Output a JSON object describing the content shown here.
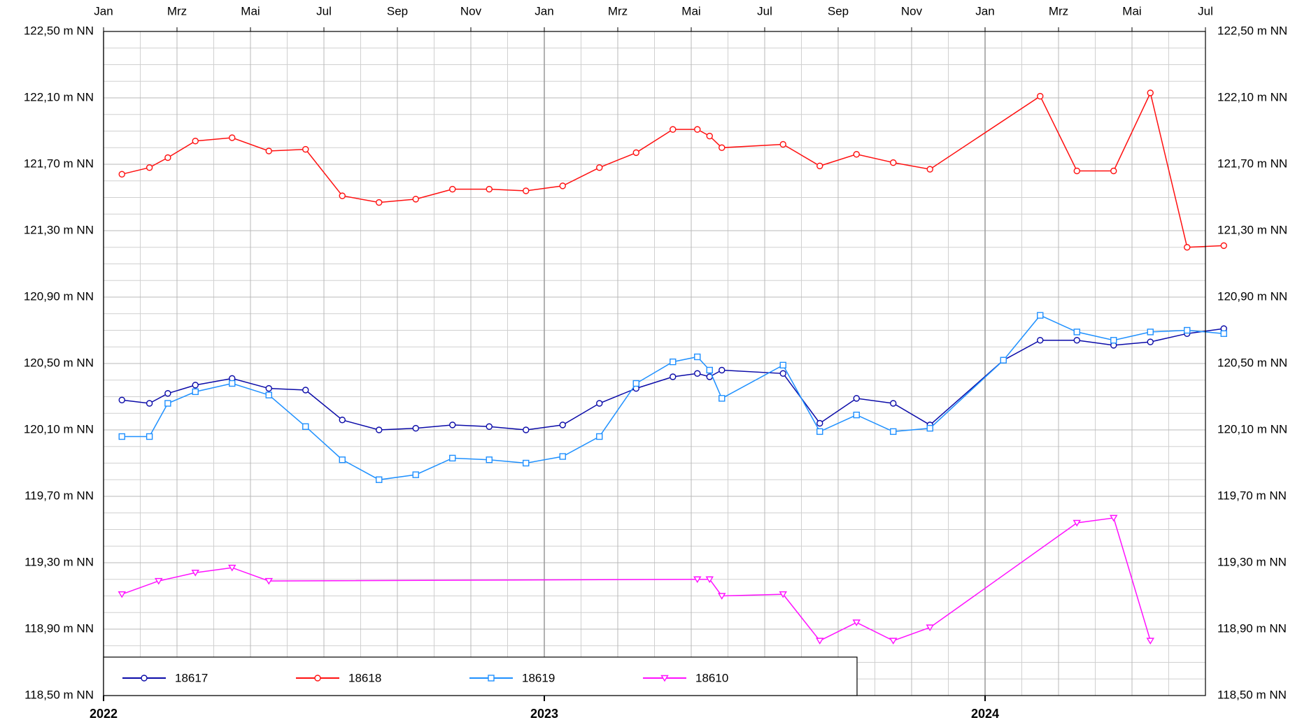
{
  "chart_data": {
    "type": "line",
    "xlim": [
      "2022-01",
      "2024-07"
    ],
    "xticks": [
      {
        "value": "2022-01",
        "label": "Jan"
      },
      {
        "value": "2022-03",
        "label": "Mrz"
      },
      {
        "value": "2022-05",
        "label": "Mai"
      },
      {
        "value": "2022-07",
        "label": "Jul"
      },
      {
        "value": "2022-09",
        "label": "Sep"
      },
      {
        "value": "2022-11",
        "label": "Nov"
      },
      {
        "value": "2023-01",
        "label": "Jan"
      },
      {
        "value": "2023-03",
        "label": "Mrz"
      },
      {
        "value": "2023-05",
        "label": "Mai"
      },
      {
        "value": "2023-07",
        "label": "Jul"
      },
      {
        "value": "2023-09",
        "label": "Sep"
      },
      {
        "value": "2023-11",
        "label": "Nov"
      },
      {
        "value": "2024-01",
        "label": "Jan"
      },
      {
        "value": "2024-03",
        "label": "Mrz"
      },
      {
        "value": "2024-05",
        "label": "Mai"
      },
      {
        "value": "2024-07",
        "label": "Jul"
      }
    ],
    "year_ticks": [
      {
        "value": "2022-01",
        "label": "2022"
      },
      {
        "value": "2023-01",
        "label": "2023"
      },
      {
        "value": "2024-01",
        "label": "2024"
      }
    ],
    "xminorticks": [
      "2022-02",
      "2022-04",
      "2022-06",
      "2022-08",
      "2022-10",
      "2022-12",
      "2023-02",
      "2023-04",
      "2023-06",
      "2023-08",
      "2023-10",
      "2023-12",
      "2024-02",
      "2024-04",
      "2024-06"
    ],
    "ylim": [
      118.5,
      122.5
    ],
    "yticks": [
      {
        "value": 118.5,
        "label": "118,50 m NN"
      },
      {
        "value": 118.9,
        "label": "118,90 m NN"
      },
      {
        "value": 119.3,
        "label": "119,30 m NN"
      },
      {
        "value": 119.7,
        "label": "119,70 m NN"
      },
      {
        "value": 120.1,
        "label": "120,10 m NN"
      },
      {
        "value": 120.5,
        "label": "120,50 m NN"
      },
      {
        "value": 120.9,
        "label": "120,90 m NN"
      },
      {
        "value": 121.3,
        "label": "121,30 m NN"
      },
      {
        "value": 121.7,
        "label": "121,70 m NN"
      },
      {
        "value": 122.1,
        "label": "122,10 m NN"
      },
      {
        "value": 122.5,
        "label": "122,50 m NN"
      }
    ],
    "yminorticks": [
      118.6,
      118.7,
      118.8,
      119.0,
      119.1,
      119.2,
      119.4,
      119.5,
      119.6,
      119.8,
      119.9,
      120.0,
      120.2,
      120.3,
      120.4,
      120.6,
      120.7,
      120.8,
      121.0,
      121.1,
      121.2,
      121.4,
      121.5,
      121.6,
      121.8,
      121.9,
      122.0,
      122.2,
      122.3,
      122.4
    ],
    "grid": true,
    "legend": "bottom-left",
    "series": [
      {
        "name": "18617",
        "color": "#0a0aa8",
        "marker": "circle",
        "x": [
          "2022-01",
          "2022-02",
          "2022-02",
          "2022-03",
          "2022-04",
          "2022-05",
          "2022-06",
          "2022-07",
          "2022-08",
          "2022-09",
          "2022-10",
          "2022-11",
          "2022-12",
          "2023-01",
          "2023-02",
          "2023-03",
          "2023-04",
          "2023-05",
          "2023-05",
          "2023-05",
          "2023-07",
          "2023-08",
          "2023-09",
          "2023-10",
          "2023-11",
          "2024-01",
          "2024-02",
          "2024-03",
          "2024-04",
          "2024-05",
          "2024-06",
          "2024-07"
        ],
        "values": [
          120.28,
          120.26,
          120.32,
          120.37,
          120.41,
          120.35,
          120.34,
          120.16,
          120.1,
          120.11,
          120.13,
          120.12,
          120.1,
          120.13,
          120.26,
          120.35,
          120.42,
          120.44,
          120.42,
          120.46,
          120.44,
          120.14,
          120.29,
          120.26,
          120.13,
          120.52,
          120.64,
          120.64,
          120.61,
          120.63,
          120.68,
          120.71
        ]
      },
      {
        "name": "18618",
        "color": "#ff1010",
        "marker": "circle",
        "x": [
          "2022-01",
          "2022-02",
          "2022-02",
          "2022-03",
          "2022-04",
          "2022-05",
          "2022-06",
          "2022-07",
          "2022-08",
          "2022-09",
          "2022-10",
          "2022-11",
          "2022-12",
          "2023-01",
          "2023-02",
          "2023-03",
          "2023-04",
          "2023-05",
          "2023-05",
          "2023-05",
          "2023-07",
          "2023-08",
          "2023-09",
          "2023-10",
          "2023-11",
          "2024-02",
          "2024-03",
          "2024-04",
          "2024-05",
          "2024-06",
          "2024-07"
        ],
        "values": [
          121.64,
          121.68,
          121.74,
          121.84,
          121.86,
          121.78,
          121.79,
          121.51,
          121.47,
          121.49,
          121.55,
          121.55,
          121.54,
          121.57,
          121.68,
          121.77,
          121.91,
          121.91,
          121.87,
          121.8,
          121.82,
          121.69,
          121.76,
          121.71,
          121.67,
          122.11,
          121.66,
          121.66,
          122.13,
          121.2,
          121.21
        ]
      },
      {
        "name": "18619",
        "color": "#1e90ff",
        "marker": "square",
        "x": [
          "2022-01",
          "2022-02",
          "2022-02",
          "2022-03",
          "2022-04",
          "2022-05",
          "2022-06",
          "2022-07",
          "2022-08",
          "2022-09",
          "2022-10",
          "2022-11",
          "2022-12",
          "2023-01",
          "2023-02",
          "2023-03",
          "2023-04",
          "2023-05",
          "2023-05",
          "2023-05",
          "2023-07",
          "2023-08",
          "2023-09",
          "2023-10",
          "2023-11",
          "2024-01",
          "2024-02",
          "2024-03",
          "2024-04",
          "2024-05",
          "2024-06",
          "2024-07"
        ],
        "values": [
          120.06,
          120.06,
          120.26,
          120.33,
          120.38,
          120.31,
          120.12,
          119.92,
          119.8,
          119.83,
          119.93,
          119.92,
          119.9,
          119.94,
          120.06,
          120.38,
          120.51,
          120.54,
          120.46,
          120.29,
          120.49,
          120.09,
          120.19,
          120.09,
          120.11,
          120.52,
          120.79,
          120.69,
          120.64,
          120.69,
          120.7,
          120.68
        ]
      },
      {
        "name": "18610",
        "color": "#ff10ff",
        "marker": "triangle",
        "x": [
          "2022-01",
          "2022-02",
          "2022-03",
          "2022-04",
          "2022-05",
          "2023-05",
          "2023-05",
          "2023-05",
          "2023-07",
          "2023-08",
          "2023-09",
          "2023-10",
          "2023-11",
          "2024-03",
          "2024-04",
          "2024-05"
        ],
        "values": [
          119.11,
          119.19,
          119.24,
          119.27,
          119.19,
          119.2,
          119.2,
          119.1,
          119.11,
          118.83,
          118.94,
          118.83,
          118.91,
          119.54,
          119.57,
          118.83
        ]
      }
    ]
  }
}
